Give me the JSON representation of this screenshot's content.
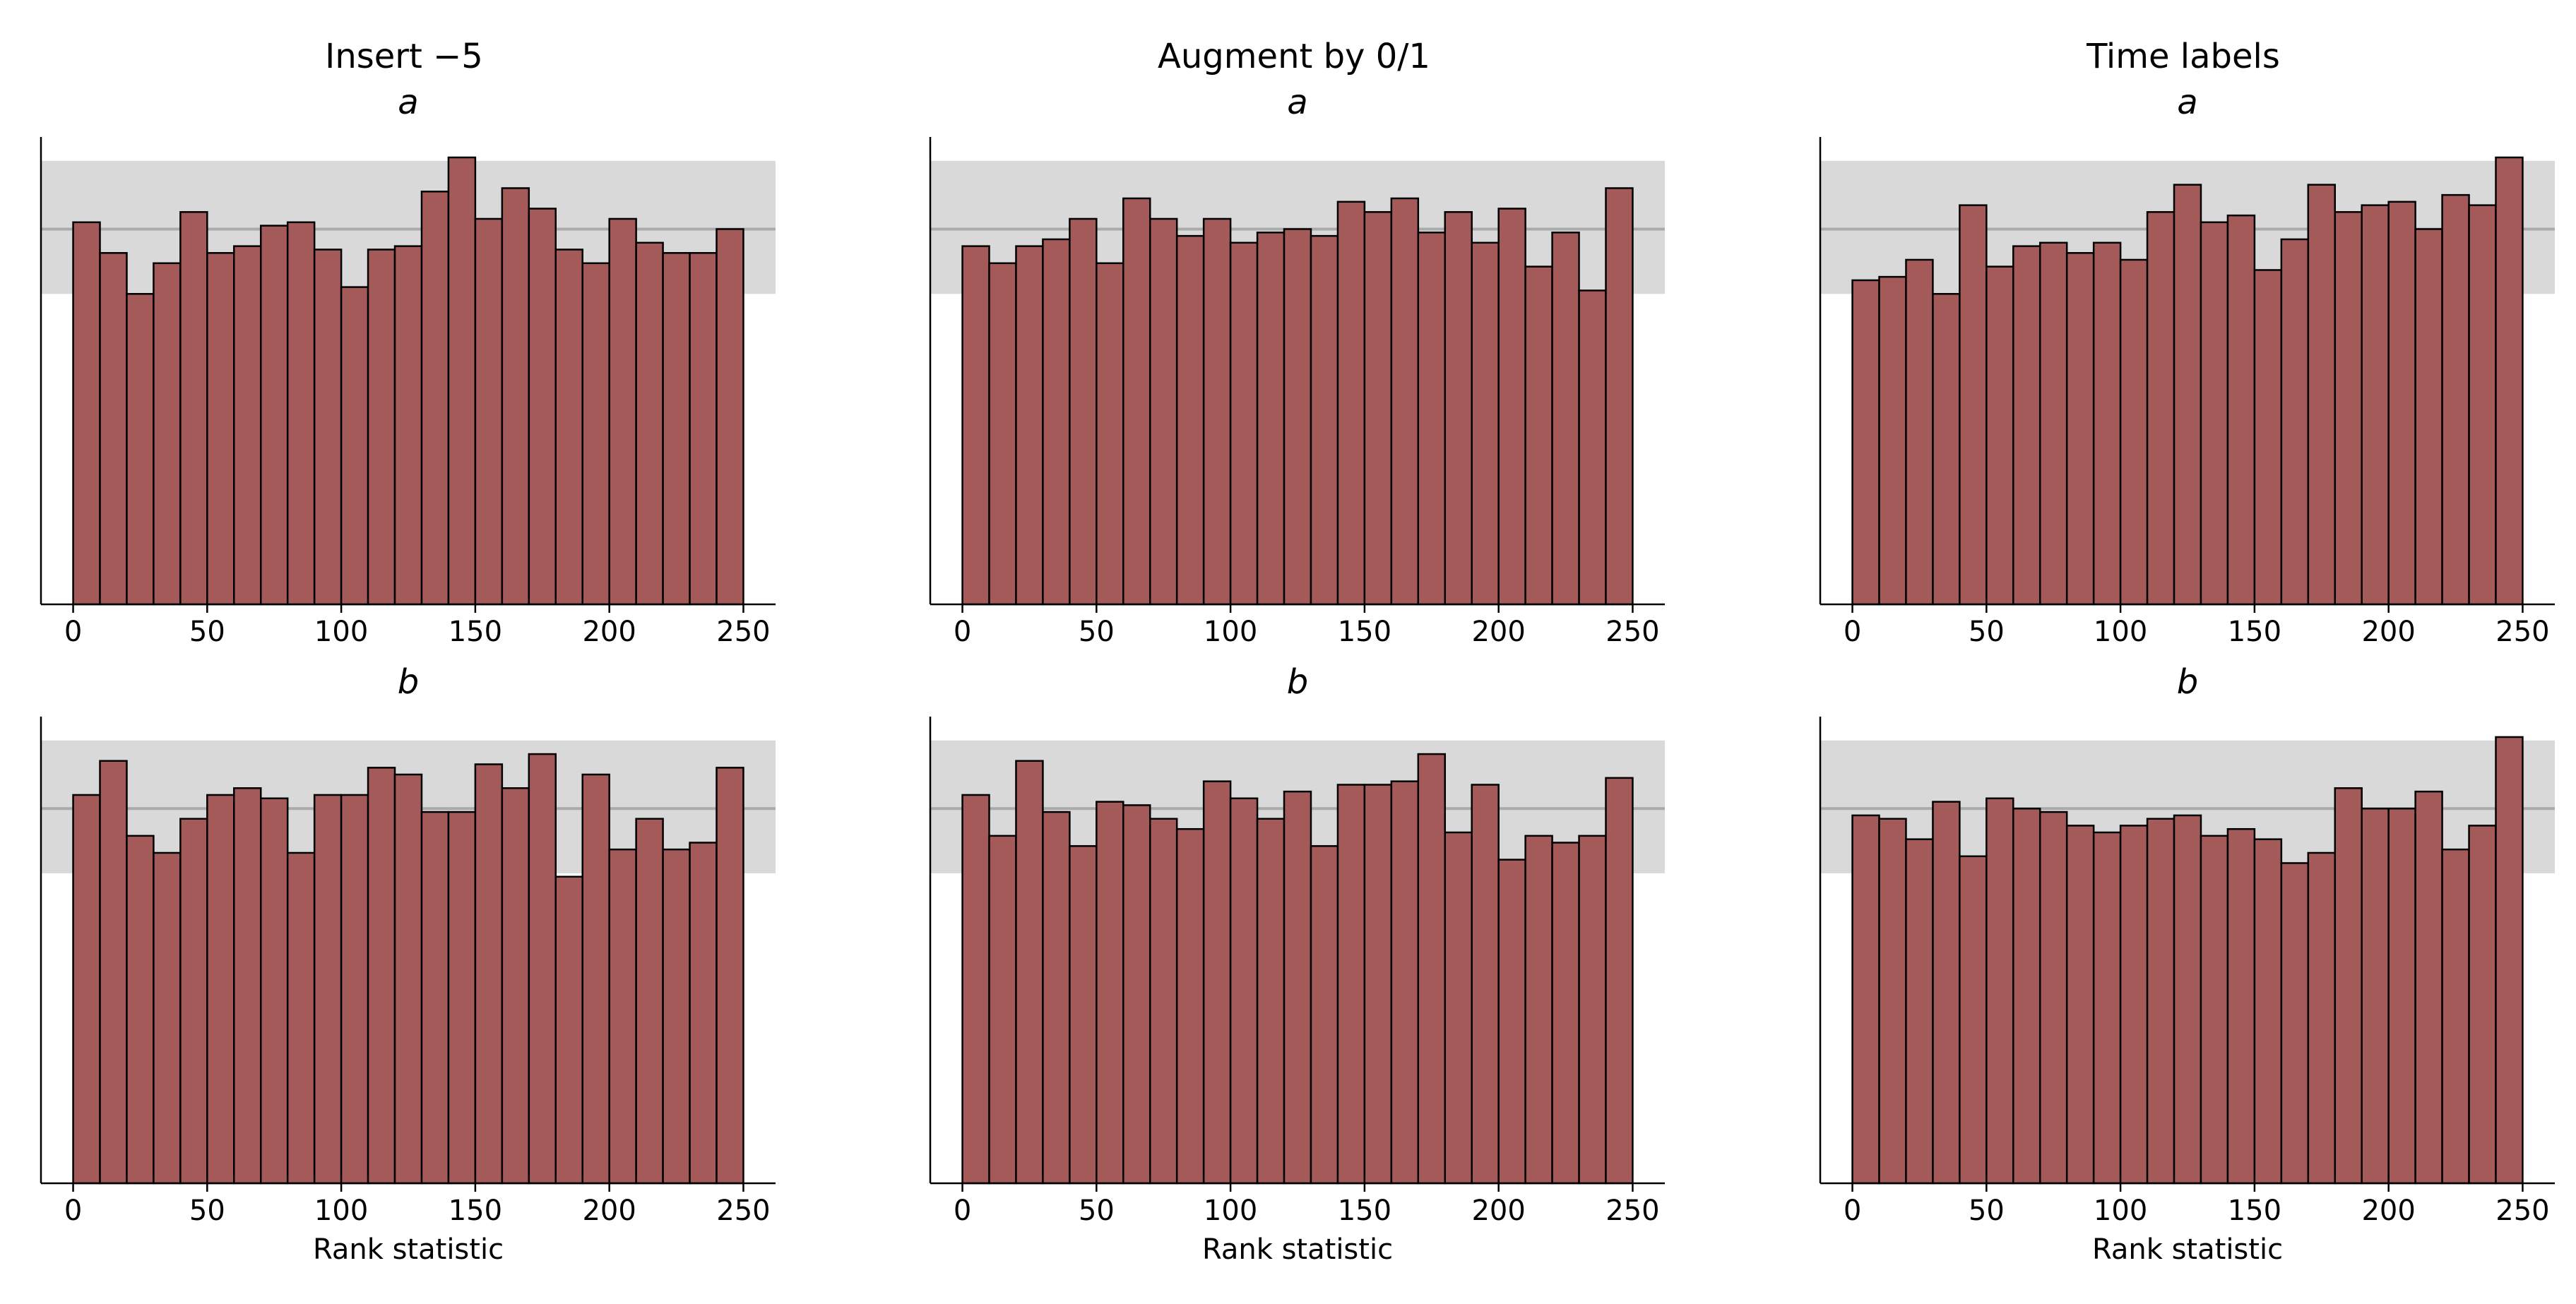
{
  "figure": {
    "column_titles": [
      "Insert −5",
      "Augment by 0/1",
      "Time labels"
    ]
  },
  "chart_data": [
    {
      "type": "bar",
      "column": "Insert −5",
      "title": "a",
      "xlabel": "",
      "xlim": [
        -12,
        262
      ],
      "ylim": [
        0,
        137
      ],
      "xticks": [
        0,
        50,
        100,
        150,
        200,
        250
      ],
      "bin_edges": [
        0,
        10,
        20,
        30,
        40,
        50,
        60,
        70,
        80,
        90,
        100,
        110,
        120,
        130,
        140,
        150,
        160,
        170,
        180,
        190,
        200,
        210,
        220,
        230,
        240,
        250
      ],
      "values": [
        112,
        103,
        91,
        100,
        115,
        103,
        105,
        111,
        112,
        104,
        93,
        104,
        105,
        121,
        131,
        113,
        122,
        116,
        104,
        100,
        113,
        106,
        103,
        103,
        110
      ],
      "band_low": 91,
      "band_high": 130,
      "mean_line": 110,
      "colors": {
        "bar": "#a55a5a",
        "edge": "#000000",
        "band": "#d9d9d9",
        "mean": "#aaaaaa"
      }
    },
    {
      "type": "bar",
      "column": "Augment by 0/1",
      "title": "a",
      "xlabel": "",
      "xlim": [
        -12,
        262
      ],
      "ylim": [
        0,
        137
      ],
      "xticks": [
        0,
        50,
        100,
        150,
        200,
        250
      ],
      "bin_edges": [
        0,
        10,
        20,
        30,
        40,
        50,
        60,
        70,
        80,
        90,
        100,
        110,
        120,
        130,
        140,
        150,
        160,
        170,
        180,
        190,
        200,
        210,
        220,
        230,
        240,
        250
      ],
      "values": [
        105,
        100,
        105,
        107,
        113,
        100,
        119,
        113,
        108,
        113,
        106,
        109,
        110,
        108,
        118,
        115,
        119,
        109,
        115,
        106,
        116,
        99,
        109,
        92,
        122
      ],
      "band_low": 91,
      "band_high": 130,
      "mean_line": 110,
      "colors": {
        "bar": "#a55a5a",
        "edge": "#000000",
        "band": "#d9d9d9",
        "mean": "#aaaaaa"
      }
    },
    {
      "type": "bar",
      "column": "Time labels",
      "title": "a",
      "xlabel": "",
      "xlim": [
        -12,
        262
      ],
      "ylim": [
        0,
        137
      ],
      "xticks": [
        0,
        50,
        100,
        150,
        200,
        250
      ],
      "bin_edges": [
        0,
        10,
        20,
        30,
        40,
        50,
        60,
        70,
        80,
        90,
        100,
        110,
        120,
        130,
        140,
        150,
        160,
        170,
        180,
        190,
        200,
        210,
        220,
        230,
        240,
        250
      ],
      "values": [
        95,
        96,
        101,
        91,
        117,
        99,
        105,
        106,
        103,
        106,
        101,
        115,
        123,
        112,
        114,
        98,
        107,
        123,
        115,
        117,
        118,
        110,
        120,
        117,
        131
      ],
      "band_low": 91,
      "band_high": 130,
      "mean_line": 110,
      "colors": {
        "bar": "#a55a5a",
        "edge": "#000000",
        "band": "#d9d9d9",
        "mean": "#aaaaaa"
      }
    },
    {
      "type": "bar",
      "column": "Insert −5",
      "title": "b",
      "xlabel": "Rank statistic",
      "xlim": [
        -12,
        262
      ],
      "ylim": [
        0,
        137
      ],
      "xticks": [
        0,
        50,
        100,
        150,
        200,
        250
      ],
      "bin_edges": [
        0,
        10,
        20,
        30,
        40,
        50,
        60,
        70,
        80,
        90,
        100,
        110,
        120,
        130,
        140,
        150,
        160,
        170,
        180,
        190,
        200,
        210,
        220,
        230,
        240,
        250
      ],
      "values": [
        114,
        124,
        102,
        97,
        107,
        114,
        116,
        113,
        97,
        114,
        114,
        122,
        120,
        109,
        109,
        123,
        116,
        126,
        90,
        120,
        98,
        107,
        98,
        100,
        122
      ],
      "band_low": 91,
      "band_high": 130,
      "mean_line": 110,
      "colors": {
        "bar": "#a55a5a",
        "edge": "#000000",
        "band": "#d9d9d9",
        "mean": "#aaaaaa"
      }
    },
    {
      "type": "bar",
      "column": "Augment by 0/1",
      "title": "b",
      "xlabel": "Rank statistic",
      "xlim": [
        -12,
        262
      ],
      "ylim": [
        0,
        137
      ],
      "xticks": [
        0,
        50,
        100,
        150,
        200,
        250
      ],
      "bin_edges": [
        0,
        10,
        20,
        30,
        40,
        50,
        60,
        70,
        80,
        90,
        100,
        110,
        120,
        130,
        140,
        150,
        160,
        170,
        180,
        190,
        200,
        210,
        220,
        230,
        240,
        250
      ],
      "values": [
        114,
        102,
        124,
        109,
        99,
        112,
        111,
        107,
        104,
        118,
        113,
        107,
        115,
        99,
        117,
        117,
        118,
        126,
        103,
        117,
        95,
        102,
        100,
        102,
        119
      ],
      "band_low": 91,
      "band_high": 130,
      "mean_line": 110,
      "colors": {
        "bar": "#a55a5a",
        "edge": "#000000",
        "band": "#d9d9d9",
        "mean": "#aaaaaa"
      }
    },
    {
      "type": "bar",
      "column": "Time labels",
      "title": "b",
      "xlabel": "Rank statistic",
      "xlim": [
        -12,
        262
      ],
      "ylim": [
        0,
        137
      ],
      "xticks": [
        0,
        50,
        100,
        150,
        200,
        250
      ],
      "bin_edges": [
        0,
        10,
        20,
        30,
        40,
        50,
        60,
        70,
        80,
        90,
        100,
        110,
        120,
        130,
        140,
        150,
        160,
        170,
        180,
        190,
        200,
        210,
        220,
        230,
        240,
        250
      ],
      "values": [
        108,
        107,
        101,
        112,
        96,
        113,
        110,
        109,
        105,
        103,
        105,
        107,
        108,
        102,
        104,
        101,
        94,
        97,
        116,
        110,
        110,
        115,
        98,
        105,
        131
      ],
      "band_low": 91,
      "band_high": 130,
      "mean_line": 110,
      "colors": {
        "bar": "#a55a5a",
        "edge": "#000000",
        "band": "#d9d9d9",
        "mean": "#aaaaaa"
      }
    }
  ]
}
